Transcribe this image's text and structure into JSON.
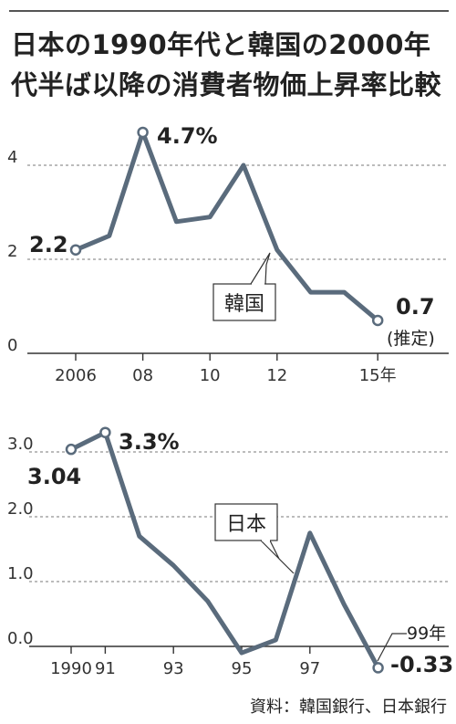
{
  "title": {
    "line1": "日本の1990年代と韓国の2000年",
    "line2": "代半ば以降の消費者物価上昇率比較"
  },
  "source": "資料：韓国銀行、日本銀行",
  "colors": {
    "line": "#5a6b7c",
    "grid": "#7a7a7a",
    "axis": "#333333"
  },
  "chart_data": [
    {
      "type": "line",
      "series": [
        {
          "name": "韓国",
          "x": [
            2006,
            2007,
            2008,
            2009,
            2010,
            2011,
            2012,
            2013,
            2014,
            2015
          ],
          "values": [
            2.2,
            2.5,
            4.7,
            2.8,
            2.9,
            4.0,
            2.2,
            1.3,
            1.3,
            0.7
          ]
        }
      ],
      "ylim": [
        0,
        5
      ],
      "yticks": [
        "0",
        "2",
        "4"
      ],
      "xticks": [
        "2006",
        "08",
        "10",
        "12",
        "15年"
      ],
      "data_labels": [
        "2.2",
        "4.7%",
        "0.7"
      ],
      "annotations": [
        "(推定)"
      ],
      "grid": true
    },
    {
      "type": "line",
      "series": [
        {
          "name": "日本",
          "x": [
            1990,
            1991,
            1992,
            1993,
            1994,
            1995,
            1996,
            1997,
            1998,
            1999
          ],
          "values": [
            3.04,
            3.3,
            1.7,
            1.25,
            0.7,
            -0.1,
            0.1,
            1.75,
            0.65,
            -0.33
          ]
        }
      ],
      "ylim": [
        -0.4,
        3.6
      ],
      "yticks": [
        "0.0",
        "1.0",
        "2.0",
        "3.0"
      ],
      "xticks": [
        "1990",
        "91",
        "93",
        "95",
        "97"
      ],
      "data_labels": [
        "3.04",
        "3.3%",
        "-0.33"
      ],
      "annotations": [
        "99年"
      ],
      "grid": true
    }
  ]
}
